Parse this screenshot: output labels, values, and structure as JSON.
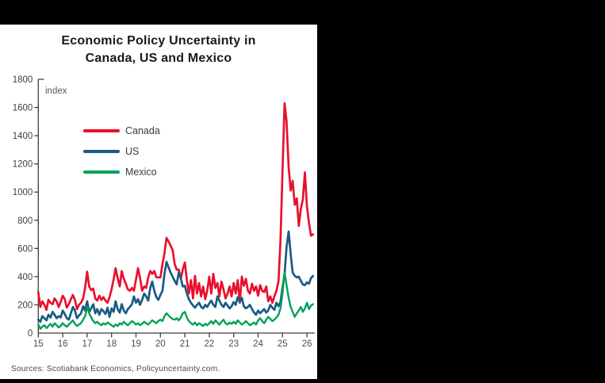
{
  "chart_data": {
    "type": "line",
    "title_line1": "Economic Policy Uncertainty in",
    "title_line2": "Canada, US and Mexico",
    "unit_label": "index",
    "source_note": "Sources: Scotiabank Economics, Policyuncertainty.com.",
    "x_tick_labels": [
      "15",
      "16",
      "17",
      "18",
      "19",
      "20",
      "21",
      "22",
      "23",
      "24",
      "25",
      "26"
    ],
    "x_start_year": 2015,
    "x_frequency": "monthly",
    "y_ticks": [
      0,
      200,
      400,
      600,
      800,
      1000,
      1200,
      1400,
      1600,
      1800
    ],
    "ylim": [
      0,
      1800
    ],
    "legend_position": "top-left-inside",
    "grid": "off",
    "axis_color": "#3d3d3d",
    "series": [
      {
        "name": "Canada",
        "color": "#e8112d",
        "values": [
          290,
          185,
          225,
          200,
          165,
          235,
          215,
          205,
          245,
          225,
          185,
          220,
          265,
          240,
          180,
          205,
          240,
          270,
          235,
          170,
          200,
          215,
          245,
          320,
          435,
          330,
          305,
          315,
          245,
          230,
          265,
          235,
          255,
          230,
          215,
          255,
          310,
          380,
          460,
          390,
          330,
          440,
          385,
          350,
          310,
          300,
          320,
          300,
          380,
          460,
          390,
          300,
          330,
          320,
          395,
          440,
          420,
          440,
          395,
          395,
          395,
          490,
          565,
          675,
          650,
          620,
          590,
          490,
          450,
          450,
          385,
          450,
          500,
          375,
          280,
          375,
          245,
          405,
          280,
          355,
          260,
          330,
          240,
          300,
          400,
          280,
          420,
          320,
          355,
          260,
          365,
          310,
          245,
          280,
          330,
          260,
          355,
          280,
          375,
          215,
          400,
          335,
          385,
          300,
          280,
          350,
          300,
          330,
          265,
          340,
          300,
          290,
          330,
          225,
          260,
          215,
          260,
          300,
          365,
          650,
          1150,
          1630,
          1500,
          1180,
          1010,
          1080,
          910,
          955,
          760,
          880,
          950,
          1140,
          900,
          780,
          690,
          700
        ]
      },
      {
        "name": "US",
        "color": "#1a5a85",
        "values": [
          95,
          80,
          120,
          105,
          90,
          130,
          110,
          150,
          130,
          105,
          120,
          110,
          160,
          135,
          105,
          95,
          140,
          185,
          160,
          105,
          125,
          140,
          190,
          160,
          225,
          150,
          175,
          205,
          140,
          170,
          130,
          170,
          155,
          135,
          180,
          115,
          175,
          150,
          225,
          170,
          145,
          205,
          160,
          140,
          170,
          185,
          205,
          260,
          215,
          240,
          200,
          235,
          280,
          260,
          230,
          320,
          365,
          300,
          255,
          235,
          270,
          300,
          420,
          505,
          465,
          430,
          400,
          370,
          345,
          430,
          390,
          330,
          335,
          280,
          240,
          215,
          195,
          180,
          200,
          215,
          185,
          175,
          200,
          185,
          210,
          230,
          200,
          185,
          260,
          230,
          200,
          185,
          215,
          195,
          175,
          190,
          220,
          200,
          255,
          220,
          250,
          190,
          175,
          185,
          200,
          170,
          145,
          130,
          160,
          140,
          155,
          170,
          145,
          160,
          200,
          180,
          165,
          215,
          190,
          220,
          320,
          420,
          610,
          720,
          560,
          430,
          405,
          395,
          400,
          370,
          345,
          340,
          360,
          350,
          390,
          405
        ]
      },
      {
        "name": "Mexico",
        "color": "#00a05a",
        "values": [
          60,
          30,
          45,
          55,
          35,
          50,
          65,
          45,
          70,
          55,
          40,
          50,
          70,
          55,
          45,
          60,
          75,
          90,
          65,
          50,
          60,
          70,
          95,
          120,
          185,
          140,
          110,
          85,
          70,
          80,
          65,
          55,
          70,
          60,
          75,
          65,
          55,
          45,
          60,
          50,
          70,
          60,
          80,
          65,
          55,
          70,
          85,
          75,
          60,
          70,
          55,
          65,
          80,
          70,
          60,
          75,
          90,
          80,
          70,
          85,
          95,
          85,
          120,
          140,
          125,
          110,
          100,
          95,
          105,
          90,
          110,
          140,
          150,
          110,
          85,
          70,
          60,
          75,
          55,
          70,
          60,
          50,
          65,
          55,
          70,
          85,
          65,
          90,
          75,
          60,
          80,
          95,
          70,
          60,
          75,
          65,
          80,
          65,
          90,
          75,
          60,
          70,
          85,
          70,
          55,
          65,
          75,
          60,
          90,
          105,
          85,
          70,
          95,
          115,
          100,
          85,
          95,
          110,
          130,
          175,
          280,
          430,
          340,
          250,
          185,
          150,
          115,
          140,
          160,
          185,
          150,
          175,
          215,
          170,
          195,
          205
        ]
      }
    ]
  }
}
